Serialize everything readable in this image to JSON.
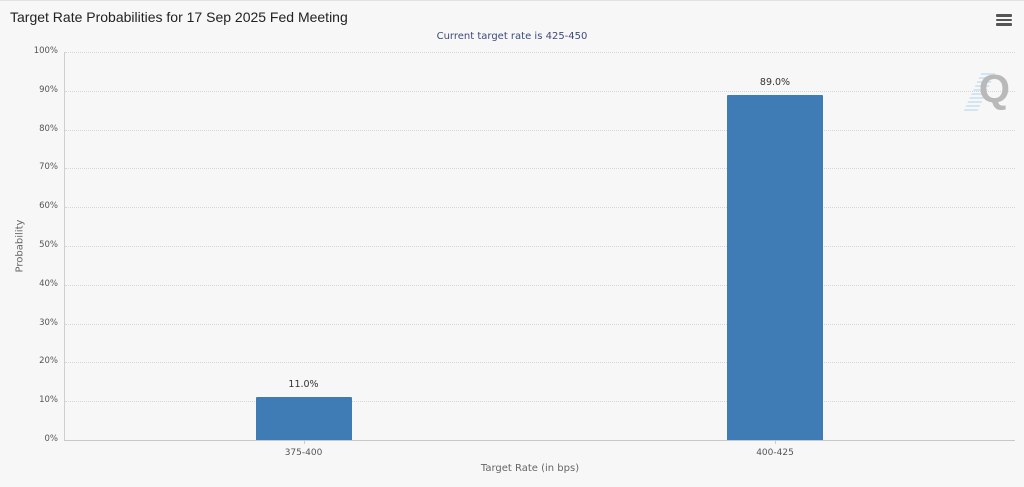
{
  "header": {
    "title": "Target Rate Probabilities for 17 Sep 2025 Fed Meeting",
    "subtitle": "Current target rate is 425-450",
    "menu_icon": "hamburger-menu-icon"
  },
  "watermark": {
    "text": "Q"
  },
  "chart_data": {
    "type": "bar",
    "title": "Target Rate Probabilities for 17 Sep 2025 Fed Meeting",
    "subtitle": "Current target rate is 425-450",
    "categories": [
      "375-400",
      "400-425"
    ],
    "values": [
      11.0,
      89.0
    ],
    "value_labels": [
      "11.0%",
      "89.0%"
    ],
    "xlabel": "Target Rate (in bps)",
    "ylabel": "Probability",
    "ylim": [
      0,
      100
    ],
    "yticks": [
      "0%",
      "10%",
      "20%",
      "30%",
      "40%",
      "50%",
      "60%",
      "70%",
      "80%",
      "90%",
      "100%"
    ],
    "grid": true,
    "legend": null,
    "bar_color": "#3f7cb5"
  }
}
